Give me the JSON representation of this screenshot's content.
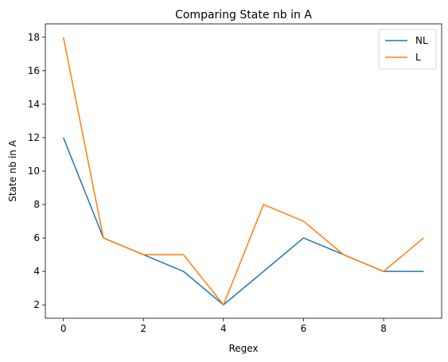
{
  "chart_data": {
    "type": "line",
    "title": "Comparing State nb in A",
    "xlabel": "Regex",
    "ylabel": "State nb in A",
    "x": [
      0,
      1,
      2,
      3,
      4,
      5,
      6,
      7,
      8,
      9
    ],
    "xlim": [
      -0.45,
      9.45
    ],
    "ylim": [
      1.2,
      18.8
    ],
    "xticks": [
      0,
      2,
      4,
      6,
      8
    ],
    "yticks": [
      2,
      4,
      6,
      8,
      10,
      12,
      14,
      16,
      18
    ],
    "grid": false,
    "legend": "top-right",
    "series": [
      {
        "name": "NL",
        "color": "#1f77b4",
        "values": [
          12,
          6,
          5,
          4,
          2,
          4,
          6,
          5,
          4,
          4
        ]
      },
      {
        "name": "L",
        "color": "#ff7f0e",
        "values": [
          18,
          6,
          5,
          5,
          2,
          8,
          7,
          5,
          4,
          6
        ]
      }
    ]
  }
}
